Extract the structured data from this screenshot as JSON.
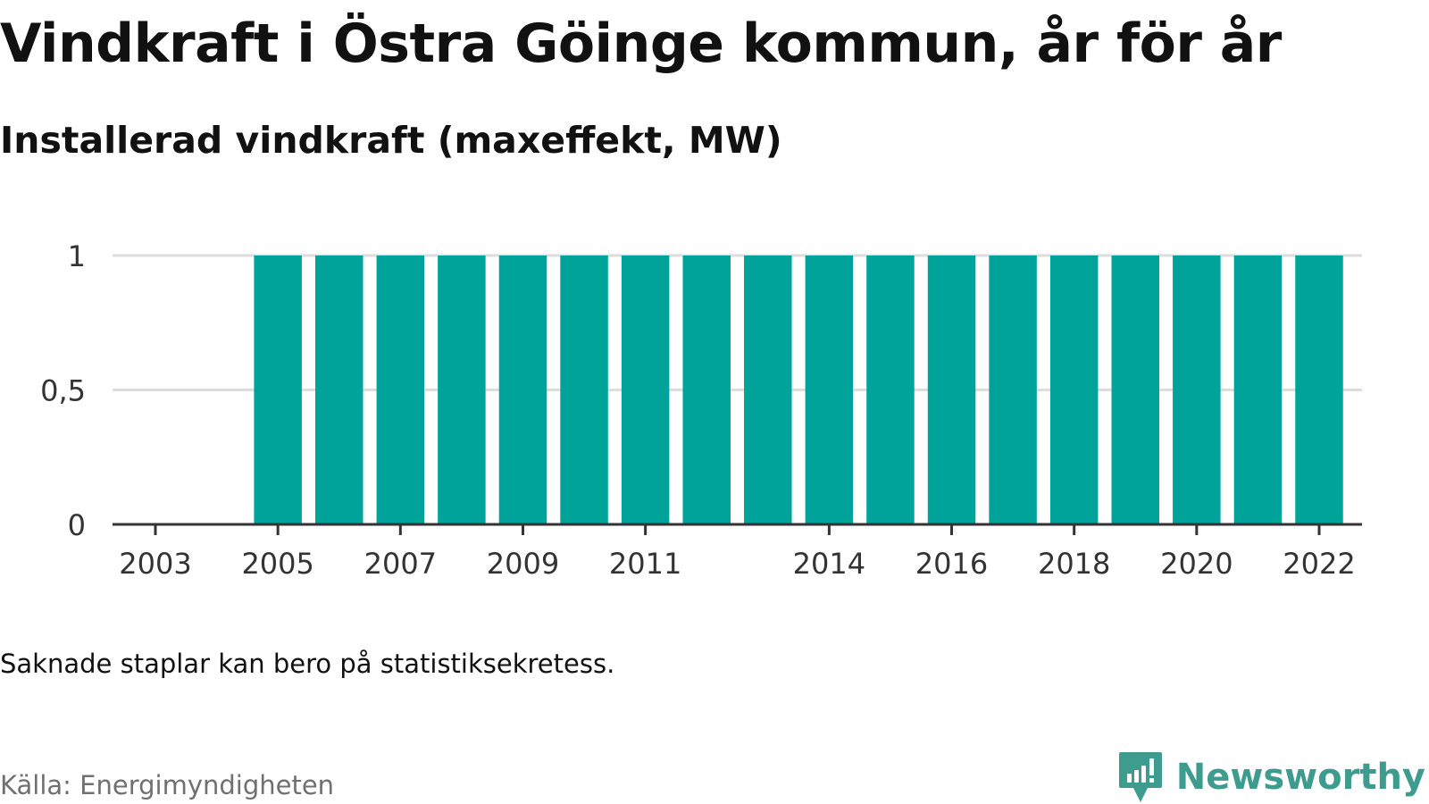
{
  "title": "Vindkraft i Östra Göinge kommun, år för år",
  "subtitle": "Installerad vindkraft (maxeffekt, MW)",
  "note": "Saknade staplar kan bero på statistiksekretess.",
  "source": "Källa: Energimyndigheten",
  "brand": {
    "name": "Newsworthy",
    "icon": "newsworthy-logo-icon",
    "color": "#3e9c8f"
  },
  "colors": {
    "bar": "#00a39a",
    "grid": "#dddddd",
    "axis": "#333333"
  },
  "chart_data": {
    "type": "bar",
    "categories": [
      "2003",
      "2004",
      "2005",
      "2006",
      "2007",
      "2008",
      "2009",
      "2010",
      "2011",
      "2012",
      "2013",
      "2014",
      "2015",
      "2016",
      "2017",
      "2018",
      "2019",
      "2020",
      "2021",
      "2022"
    ],
    "values": [
      null,
      null,
      1,
      1,
      1,
      1,
      1,
      1,
      1,
      1,
      1,
      1,
      1,
      1,
      1,
      1,
      1,
      1,
      1,
      1
    ],
    "xticks": [
      "2003",
      "2005",
      "2007",
      "2009",
      "2011",
      "2014",
      "2016",
      "2018",
      "2020",
      "2022"
    ],
    "yticks": [
      0,
      0.5,
      1
    ],
    "ytick_labels": [
      "0",
      "0,5",
      "1"
    ],
    "ylim": [
      0,
      1
    ],
    "title": "Vindkraft i Östra Göinge kommun, år för år",
    "subtitle": "Installerad vindkraft (maxeffekt, MW)",
    "grid": true,
    "legend": "none"
  }
}
